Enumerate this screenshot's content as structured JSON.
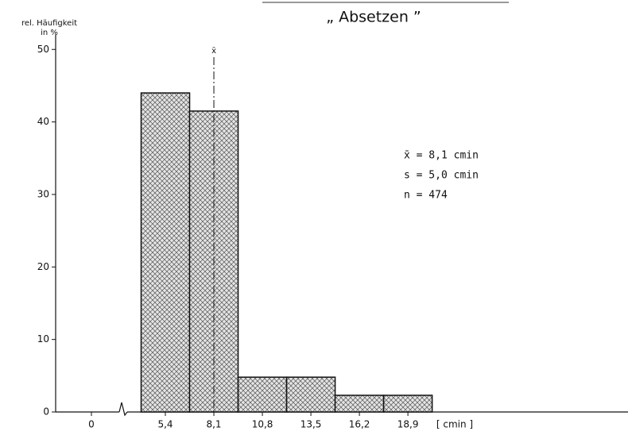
{
  "chart_data": {
    "type": "histogram",
    "title": "„ Absetzen ”",
    "y_label": [
      "rel. Häufigkeit",
      "in %"
    ],
    "x_label": "[ cmin ]",
    "bins": [
      4.05,
      6.75,
      9.45,
      12.15,
      14.85,
      17.55,
      20.25
    ],
    "counts": [
      44,
      41.5,
      4.8,
      4.8,
      2.3,
      2.3
    ],
    "xlim": [
      0,
      31
    ],
    "xticks": [
      0,
      {
        "value": 5.4,
        "label": "5,4"
      },
      {
        "value": 8.1,
        "label": "8,1"
      },
      {
        "value": 10.8,
        "label": "10,8"
      },
      {
        "value": 13.5,
        "label": "13,5"
      },
      {
        "value": 16.2,
        "label": "16,2"
      },
      {
        "value": 18.9,
        "label": "18,9"
      }
    ],
    "axis_break": true,
    "ylim": [
      0,
      52
    ],
    "yticks": [
      0,
      10,
      20,
      30,
      40,
      50
    ],
    "grid": false,
    "mean": 8.1,
    "mean_label": "x̄",
    "annotations": [
      "x̄  =  8,1  cmin",
      "s  =  5,0  cmin",
      "n  =  474"
    ]
  }
}
